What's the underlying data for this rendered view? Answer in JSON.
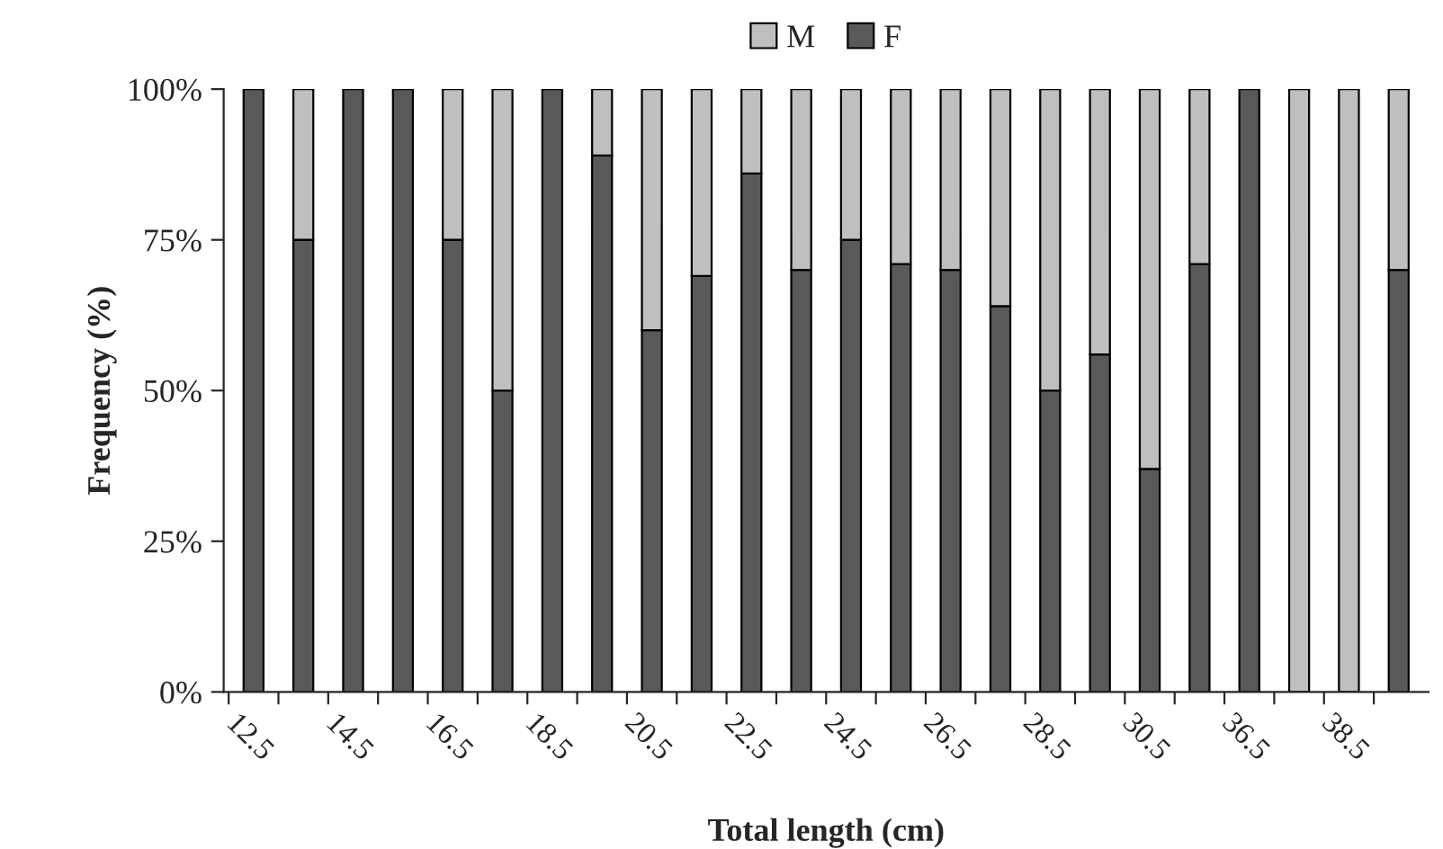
{
  "chart_data": {
    "type": "bar",
    "stacked": true,
    "xlabel": "Total length (cm)",
    "ylabel": "Frequency (%)",
    "categories": [
      "12.5",
      null,
      "14.5",
      null,
      "16.5",
      null,
      "18.5",
      null,
      "20.5",
      null,
      "22.5",
      null,
      "24.5",
      null,
      "26.5",
      null,
      "28.5",
      null,
      "30.5",
      null,
      "36.5",
      null,
      "38.5",
      null
    ],
    "series": [
      {
        "name": "F",
        "color": "#595959",
        "values": [
          100,
          75,
          100,
          100,
          75,
          50,
          100,
          89,
          60,
          69,
          86,
          70,
          75,
          71,
          70,
          64,
          50,
          56,
          37,
          71,
          100,
          0,
          0,
          70
        ]
      },
      {
        "name": "M",
        "color": "#bfbfbf",
        "values": [
          0,
          25,
          0,
          0,
          25,
          50,
          0,
          11,
          40,
          31,
          14,
          30,
          25,
          29,
          30,
          36,
          50,
          44,
          63,
          29,
          0,
          100,
          100,
          30
        ]
      }
    ],
    "ylim": [
      0,
      100
    ],
    "yticks": [
      {
        "value": 0,
        "label": "0%"
      },
      {
        "value": 25,
        "label": "25%"
      },
      {
        "value": 50,
        "label": "50%"
      },
      {
        "value": 75,
        "label": "75%"
      },
      {
        "value": 100,
        "label": "100%"
      }
    ],
    "legend": "top",
    "grid": false
  }
}
